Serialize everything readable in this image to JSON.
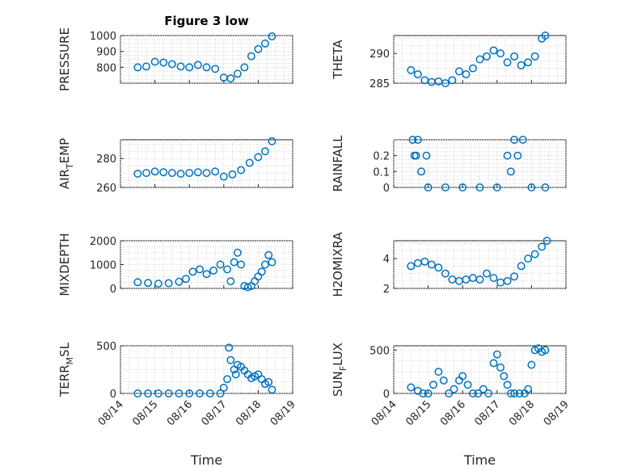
{
  "figure": {
    "title": "Figure 3 low",
    "marker_color": "#0072BD"
  },
  "chart_data": [
    {
      "type": "scatter",
      "ylabel": "PRESSURE",
      "xlim": [
        "08/14",
        "08/19"
      ],
      "ylim": [
        700,
        1000
      ],
      "yticks": [
        800,
        900,
        1000
      ],
      "grid": "on",
      "title": "Figure 3 low",
      "x": [
        14.5,
        14.75,
        15.0,
        15.25,
        15.5,
        15.75,
        16.0,
        16.25,
        16.5,
        16.75,
        17.0,
        17.2,
        17.4,
        17.6,
        17.8,
        18.0,
        18.2,
        18.4
      ],
      "y": [
        800,
        805,
        835,
        830,
        820,
        805,
        800,
        815,
        800,
        790,
        735,
        730,
        760,
        800,
        870,
        915,
        950,
        995
      ]
    },
    {
      "type": "scatter",
      "ylabel": "THETA",
      "xlim": [
        "08/14",
        "08/19"
      ],
      "ylim": [
        285,
        293
      ],
      "yticks": [
        285,
        290
      ],
      "grid": "on",
      "x": [
        14.5,
        14.7,
        14.9,
        15.1,
        15.3,
        15.5,
        15.7,
        15.9,
        16.1,
        16.3,
        16.5,
        16.7,
        16.9,
        17.1,
        17.3,
        17.5,
        17.7,
        17.9,
        18.1,
        18.3,
        18.4
      ],
      "y": [
        287.2,
        286.5,
        285.5,
        285.2,
        285.3,
        285.0,
        285.5,
        287.0,
        286.5,
        287.5,
        289.0,
        289.5,
        290.5,
        290.0,
        288.5,
        289.5,
        288.0,
        288.5,
        289.5,
        292.5,
        293.0
      ]
    },
    {
      "type": "scatter",
      "ylabel": "AIR_TEMP",
      "xlim": [
        "08/14",
        "08/19"
      ],
      "ylim": [
        260,
        293
      ],
      "yticks": [
        260,
        280
      ],
      "grid": "on",
      "x": [
        14.5,
        14.75,
        15.0,
        15.25,
        15.5,
        15.75,
        16.0,
        16.25,
        16.5,
        16.75,
        17.0,
        17.25,
        17.5,
        17.75,
        18.0,
        18.2,
        18.4
      ],
      "y": [
        269.5,
        270,
        271,
        270.5,
        270,
        269.5,
        270,
        270.5,
        270,
        271,
        267.5,
        269,
        272,
        277,
        281,
        285,
        292
      ]
    },
    {
      "type": "scatter",
      "ylabel": "RAINFALL",
      "xlim": [
        "08/14",
        "08/19"
      ],
      "ylim": [
        0,
        0.3
      ],
      "yticks": [
        0,
        0.1,
        0.2
      ],
      "grid": "on",
      "x": [
        14.55,
        14.6,
        14.65,
        14.7,
        14.8,
        14.95,
        15.0,
        15.5,
        16.0,
        16.5,
        17.0,
        17.3,
        17.4,
        17.5,
        17.6,
        17.75,
        18.0,
        18.4
      ],
      "y": [
        0.3,
        0.2,
        0.2,
        0.3,
        0.1,
        0.2,
        0,
        0,
        0,
        0,
        0,
        0.2,
        0.1,
        0.3,
        0.2,
        0.3,
        0,
        0
      ]
    },
    {
      "type": "scatter",
      "ylabel": "MIXDEPTH",
      "xlim": [
        "08/14",
        "08/19"
      ],
      "ylim": [
        0,
        2000
      ],
      "yticks": [
        0,
        1000,
        2000
      ],
      "grid": "on",
      "x": [
        14.5,
        14.8,
        15.1,
        15.4,
        15.7,
        15.9,
        16.1,
        16.3,
        16.5,
        16.7,
        16.9,
        17.1,
        17.2,
        17.3,
        17.4,
        17.5,
        17.6,
        17.7,
        17.8,
        17.9,
        18.0,
        18.1,
        18.2,
        18.3,
        18.4
      ],
      "y": [
        260,
        230,
        200,
        220,
        280,
        400,
        700,
        800,
        600,
        750,
        1000,
        800,
        300,
        1100,
        1500,
        1000,
        100,
        50,
        100,
        300,
        500,
        700,
        1000,
        1400,
        1100
      ]
    },
    {
      "type": "scatter",
      "ylabel": "H2OMIXRA",
      "xlim": [
        "08/14",
        "08/19"
      ],
      "ylim": [
        2,
        5.2
      ],
      "yticks": [
        2,
        4
      ],
      "grid": "on",
      "x": [
        14.5,
        14.7,
        14.9,
        15.1,
        15.3,
        15.5,
        15.7,
        15.9,
        16.1,
        16.3,
        16.5,
        16.7,
        16.9,
        17.1,
        17.3,
        17.5,
        17.7,
        17.9,
        18.1,
        18.3,
        18.45
      ],
      "y": [
        3.5,
        3.7,
        3.8,
        3.6,
        3.4,
        3.0,
        2.6,
        2.5,
        2.6,
        2.7,
        2.6,
        3.0,
        2.7,
        2.4,
        2.5,
        2.8,
        3.5,
        4.0,
        4.3,
        4.8,
        5.2
      ]
    },
    {
      "type": "scatter",
      "ylabel": "TERR_MSL",
      "xlim": [
        "08/14",
        "08/19"
      ],
      "ylim": [
        0,
        500
      ],
      "yticks": [
        0,
        500
      ],
      "grid": "on",
      "x": [
        14.5,
        14.8,
        15.1,
        15.4,
        15.7,
        16.0,
        16.3,
        16.6,
        16.9,
        17.0,
        17.1,
        17.15,
        17.2,
        17.3,
        17.35,
        17.4,
        17.5,
        17.6,
        17.7,
        17.8,
        17.9,
        18.0,
        18.1,
        18.2,
        18.3,
        18.4
      ],
      "y": [
        0,
        0,
        0,
        0,
        0,
        0,
        0,
        0,
        0,
        60,
        150,
        480,
        350,
        250,
        200,
        300,
        280,
        240,
        200,
        160,
        180,
        200,
        150,
        100,
        120,
        40
      ]
    },
    {
      "type": "scatter",
      "ylabel": "SUN_FLUX",
      "xlim": [
        "08/14",
        "08/19"
      ],
      "ylim": [
        0,
        550
      ],
      "yticks": [
        0,
        500
      ],
      "grid": "on",
      "x": [
        14.5,
        14.7,
        14.85,
        15.0,
        15.15,
        15.3,
        15.45,
        15.6,
        15.75,
        15.9,
        16.0,
        16.15,
        16.3,
        16.45,
        16.6,
        16.75,
        16.9,
        17.0,
        17.1,
        17.2,
        17.3,
        17.4,
        17.5,
        17.65,
        17.8,
        17.9,
        18.0,
        18.1,
        18.2,
        18.3,
        18.4
      ],
      "y": [
        70,
        30,
        0,
        0,
        100,
        250,
        150,
        0,
        50,
        150,
        200,
        100,
        0,
        0,
        50,
        0,
        350,
        450,
        300,
        200,
        100,
        0,
        0,
        0,
        0,
        50,
        330,
        500,
        520,
        480,
        500
      ]
    }
  ]
}
